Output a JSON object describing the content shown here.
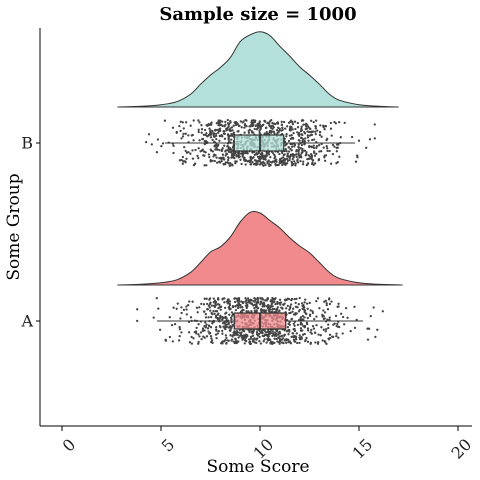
{
  "chart_data": {
    "type": "raincloud",
    "title": "Sample size = 1000",
    "xlabel": "Some Score",
    "ylabel": "Some Group",
    "xlim": [
      -1,
      20.5
    ],
    "x_ticks": [
      "0",
      "5",
      "10",
      "15",
      "20"
    ],
    "x_tick_values": [
      0,
      5,
      10,
      15,
      20
    ],
    "y_categories": [
      "A",
      "B"
    ],
    "grid": false,
    "legend": "none",
    "series": [
      {
        "name": "A",
        "color": "#f08a8c",
        "n": 1000,
        "density": {
          "x": [
            2.8,
            4,
            5,
            5.8,
            6.5,
            7.0,
            7.5,
            8.0,
            8.5,
            9.0,
            9.5,
            10.0,
            10.5,
            11.0,
            11.5,
            12.0,
            12.5,
            13.0,
            13.5,
            14.0,
            15.0,
            16.0,
            17.2
          ],
          "y": [
            0.0,
            0.01,
            0.03,
            0.07,
            0.17,
            0.3,
            0.44,
            0.51,
            0.64,
            0.84,
            0.97,
            0.96,
            0.86,
            0.76,
            0.63,
            0.52,
            0.43,
            0.3,
            0.17,
            0.09,
            0.03,
            0.01,
            0.0
          ]
        },
        "boxplot": {
          "whisker_low": 4.8,
          "q1": 8.7,
          "median": 10.0,
          "q3": 11.3,
          "whisker_high": 15.2
        }
      },
      {
        "name": "B",
        "color": "#b3e0da",
        "n": 1000,
        "density": {
          "x": [
            2.8,
            4,
            5,
            5.8,
            6.5,
            7.0,
            7.5,
            8.0,
            8.5,
            9.0,
            9.5,
            10.0,
            10.5,
            11.0,
            11.5,
            12.0,
            12.5,
            13.0,
            13.5,
            14.0,
            15.0,
            16.0,
            17.0
          ],
          "y": [
            0.0,
            0.01,
            0.03,
            0.07,
            0.17,
            0.3,
            0.42,
            0.52,
            0.65,
            0.86,
            0.95,
            0.99,
            0.94,
            0.8,
            0.67,
            0.53,
            0.42,
            0.3,
            0.17,
            0.09,
            0.03,
            0.01,
            0.0
          ]
        },
        "boxplot": {
          "whisker_low": 5.2,
          "q1": 8.7,
          "median": 10.0,
          "q3": 11.2,
          "whisker_high": 14.8
        }
      }
    ]
  }
}
